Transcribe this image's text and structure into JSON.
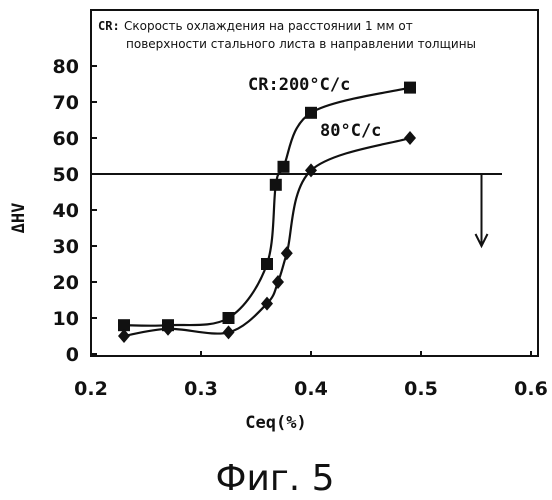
{
  "chart_data": {
    "type": "line",
    "note_key": "CR:",
    "note_line1": "Скорость охлаждения на расстоянии 1 мм от",
    "note_line2": "поверхности стального листа в направлении толщины",
    "xlabel": "Ceq(%)",
    "ylabel": "ΔHV",
    "xlim": [
      0.2,
      0.6
    ],
    "ylim": [
      0,
      80
    ],
    "x_ticks": [
      "0.2",
      "0.3",
      "0.4",
      "0.5",
      "0.6"
    ],
    "y_ticks": [
      "0",
      "10",
      "20",
      "30",
      "40",
      "50",
      "60",
      "70",
      "80"
    ],
    "x_tick_values": [
      0.2,
      0.3,
      0.4,
      0.5,
      0.6
    ],
    "y_tick_values": [
      0,
      10,
      20,
      30,
      40,
      50,
      60,
      70,
      80
    ],
    "grid": false,
    "threshold": {
      "y": 50,
      "arrow_x": 0.555,
      "arrow_to_y": 30
    },
    "series": [
      {
        "name": "CR:200°C/c",
        "marker": "square",
        "x": [
          0.23,
          0.27,
          0.325,
          0.36,
          0.368,
          0.375,
          0.4,
          0.49
        ],
        "y": [
          8,
          8,
          10,
          25,
          47,
          52,
          67,
          74
        ]
      },
      {
        "name": "80°C/c",
        "marker": "diamond",
        "x": [
          0.23,
          0.27,
          0.325,
          0.36,
          0.37,
          0.378,
          0.4,
          0.49
        ],
        "y": [
          5,
          7,
          6,
          14,
          20,
          28,
          51,
          60
        ]
      }
    ]
  },
  "caption": "Фиг. 5"
}
